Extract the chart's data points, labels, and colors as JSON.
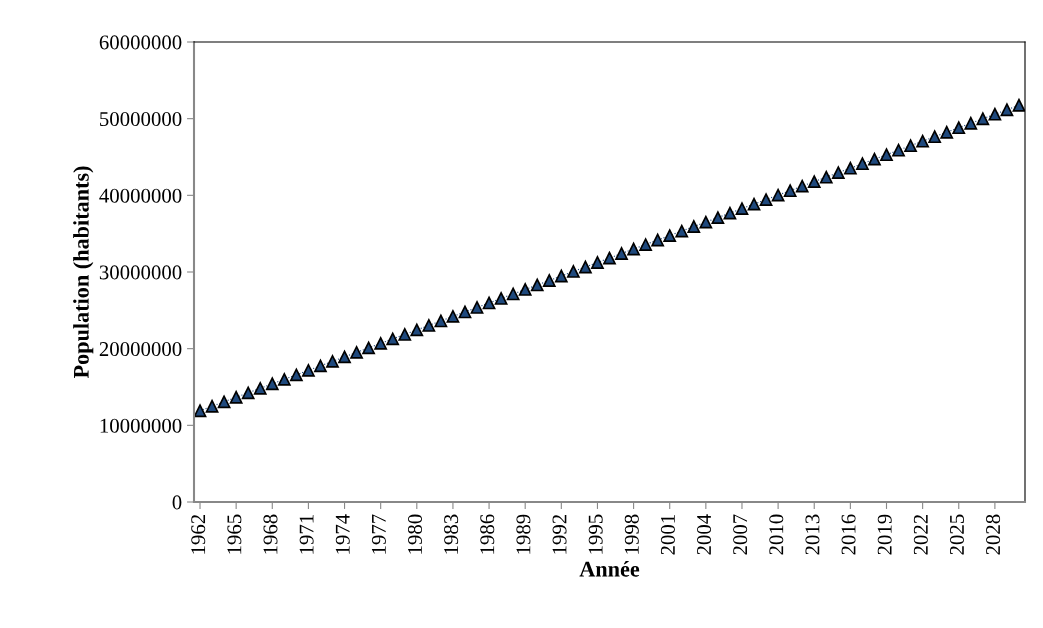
{
  "chart_data": {
    "type": "line",
    "xlabel": "Année",
    "ylabel": "Population (habitants)",
    "categories": [
      "1962",
      null,
      null,
      "1965",
      null,
      null,
      "1968",
      null,
      null,
      "1971",
      null,
      null,
      "1974",
      null,
      null,
      "1977",
      null,
      null,
      "1980",
      null,
      null,
      "1983",
      null,
      null,
      "1986",
      null,
      null,
      "1989",
      null,
      null,
      "1992",
      null,
      null,
      "1995",
      null,
      null,
      "1998",
      null,
      null,
      "2001",
      null,
      null,
      "2004",
      null,
      null,
      "2007",
      null,
      null,
      "2010",
      null,
      null,
      "2013",
      null,
      null,
      "2016",
      null,
      null,
      "2019",
      null,
      null,
      "2022",
      null,
      null,
      "2025",
      null,
      null,
      "2028",
      null,
      null
    ],
    "series": [
      {
        "color": "#1f497d",
        "values": [
          11900000,
          12490000,
          13070000,
          13660000,
          14240000,
          14830000,
          15420000,
          16000000,
          16590000,
          17170000,
          17760000,
          18350000,
          18930000,
          19520000,
          20100000,
          20690000,
          21280000,
          21860000,
          22450000,
          23030000,
          23620000,
          24210000,
          24790000,
          25380000,
          25960000,
          26550000,
          27140000,
          27720000,
          28310000,
          28890000,
          29480000,
          30070000,
          30650000,
          31240000,
          31820000,
          32410000,
          33000000,
          33580000,
          34170000,
          34750000,
          35340000,
          35930000,
          36510000,
          37100000,
          37680000,
          38270000,
          38860000,
          39440000,
          40030000,
          40610000,
          41200000,
          41790000,
          42370000,
          42960000,
          43540000,
          44130000,
          44720000,
          45300000,
          45890000,
          46470000,
          47060000,
          47650000,
          48230000,
          48820000,
          49400000,
          49990000,
          50580000,
          51160000,
          51750000
        ]
      }
    ],
    "ylim": [
      0,
      60000000
    ],
    "yticks": [
      0,
      10000000,
      20000000,
      30000000,
      40000000,
      50000000,
      60000000
    ],
    "marker": "triangle",
    "line_style": "dotted",
    "grid": false,
    "legend": false
  }
}
